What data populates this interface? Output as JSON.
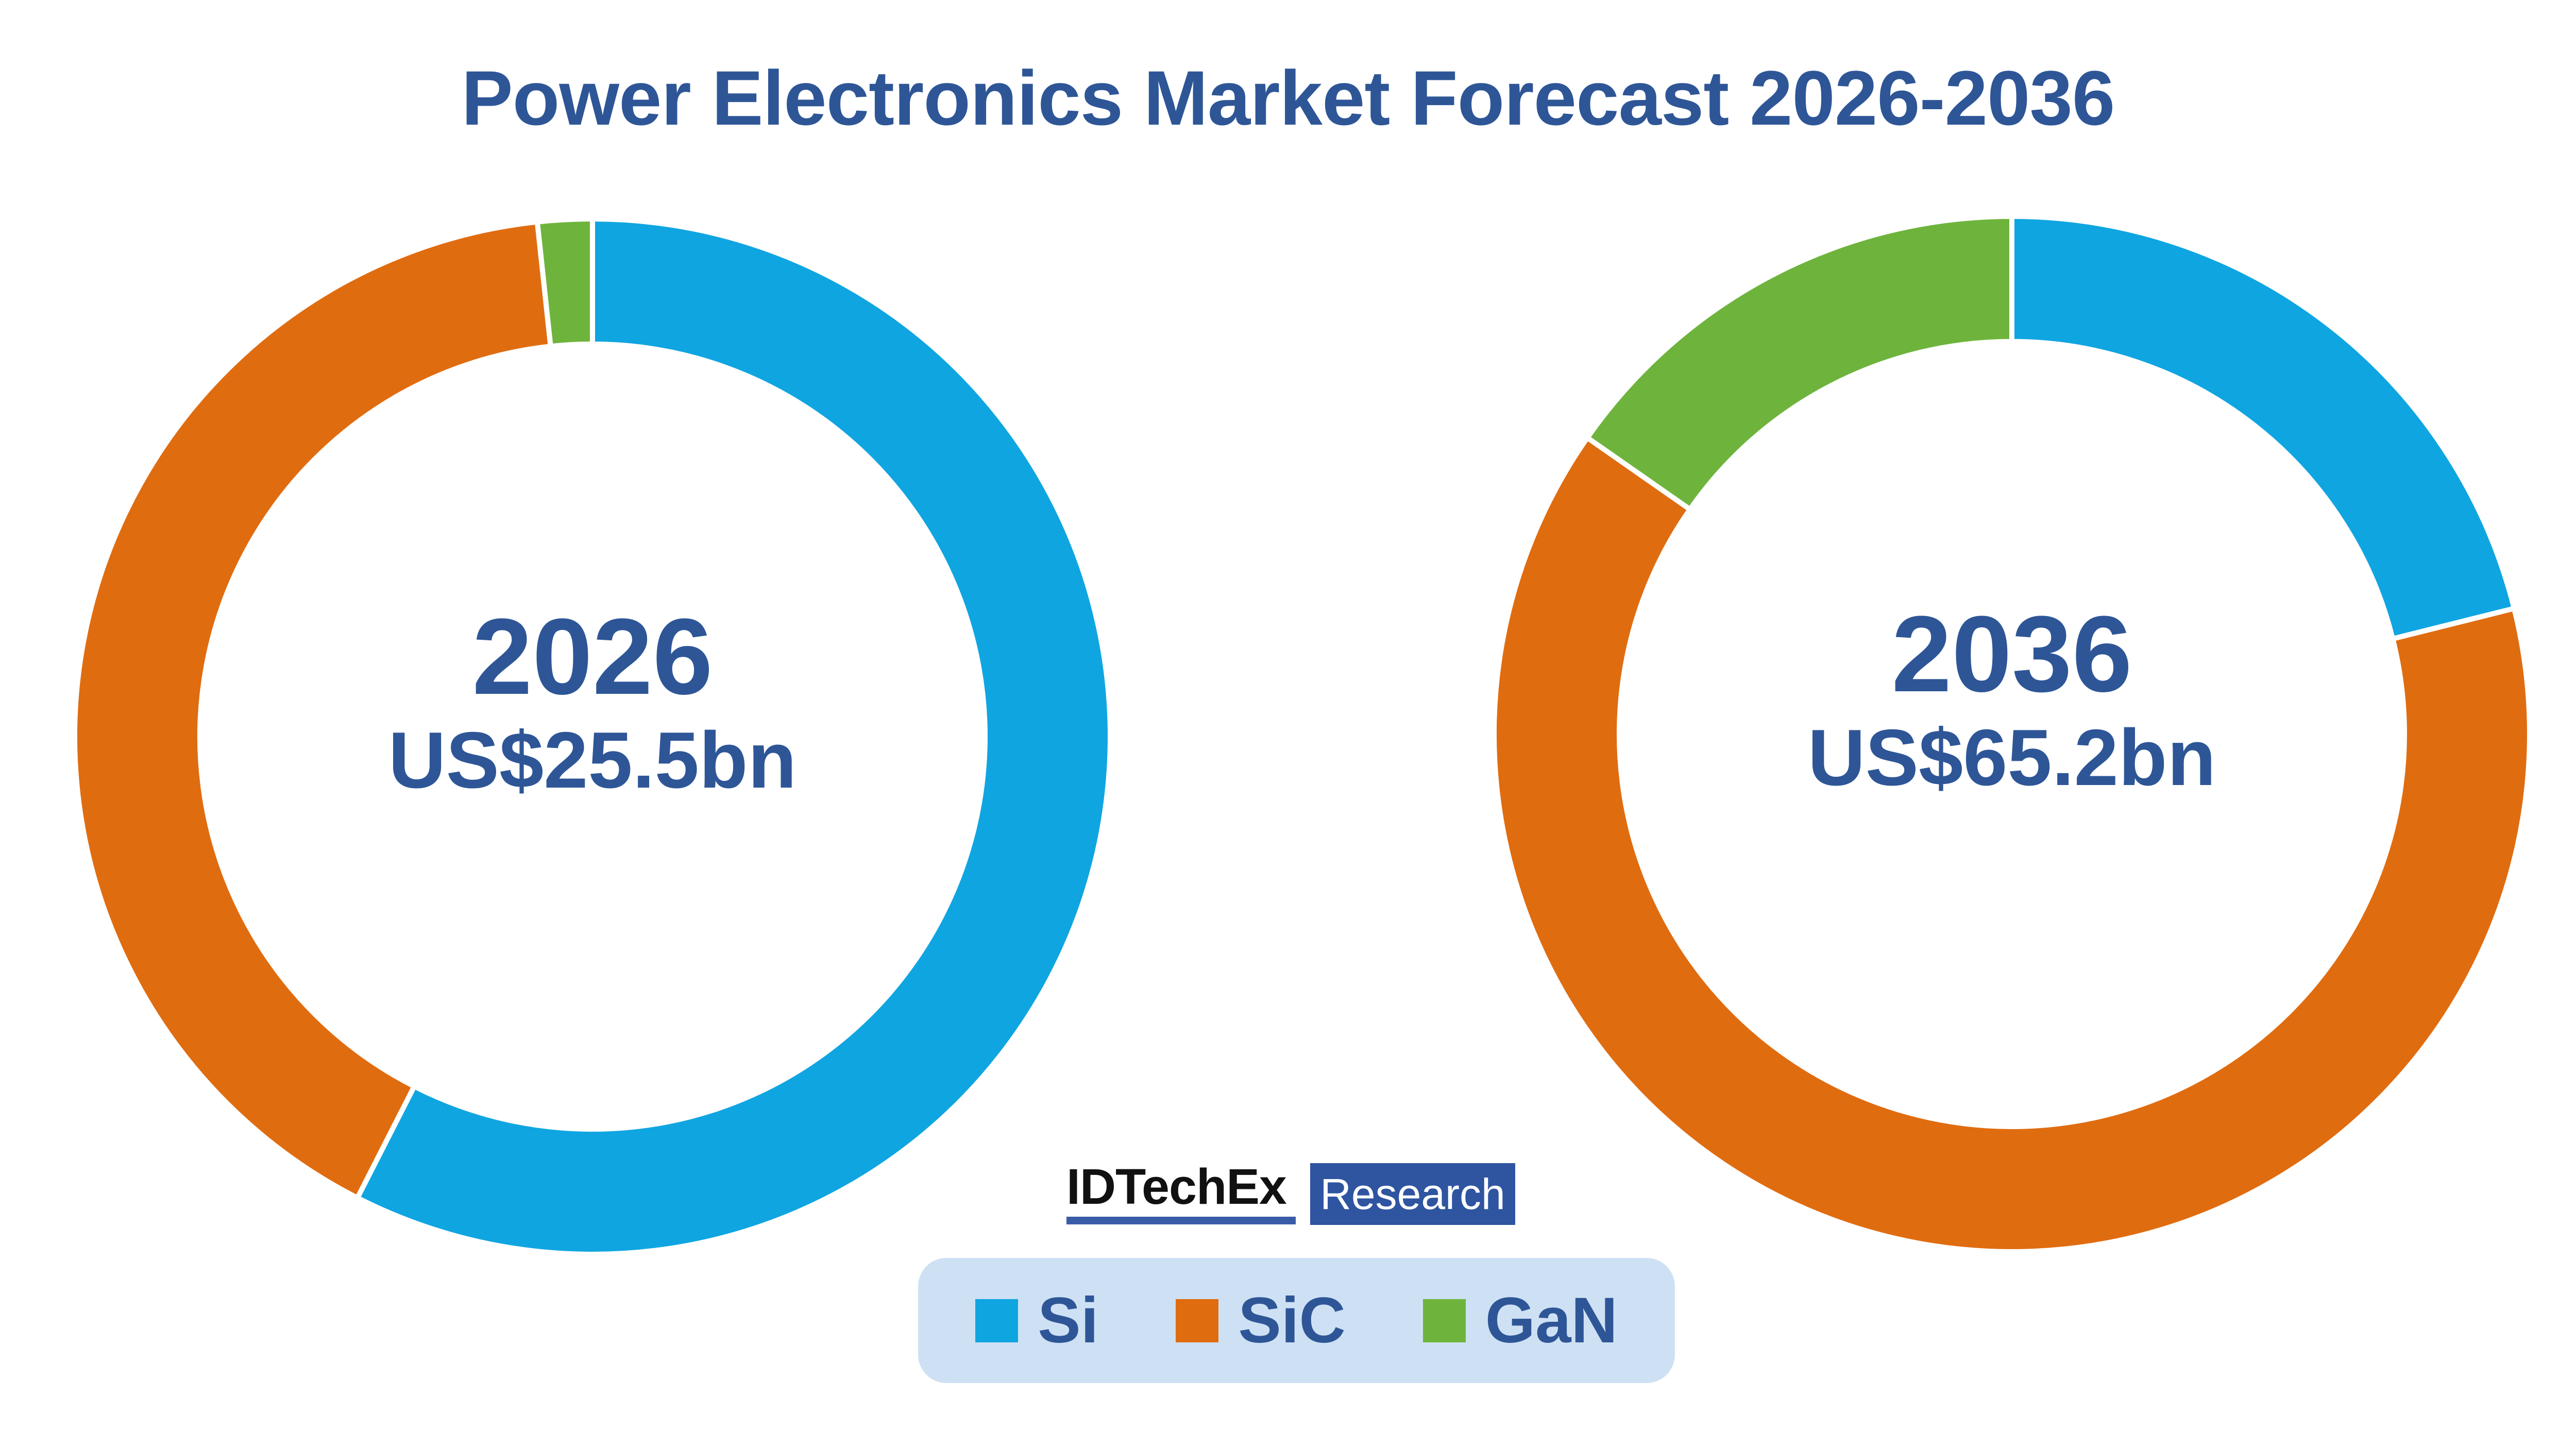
{
  "title": {
    "text": "Power Electronics Market Forecast 2026-2036"
  },
  "colors": {
    "si": "#0FA5E1",
    "sic": "#E06C10",
    "gan": "#6EB43C",
    "heading_text": "#2E5697",
    "logo_brand": "#111111",
    "logo_underline": "#3A5CA8",
    "logo_box": "#2F55A1",
    "legend_bg": "#CEE1F4",
    "separator": "#FFFFFF",
    "background": "#FFFFFF"
  },
  "chart_data": [
    {
      "type": "pie",
      "subtype": "donut",
      "dom_id": "donut-2026",
      "center_year": "2026",
      "center_total": "US$25.5bn",
      "total_usd_bn": 25.5,
      "labels": [
        "Si",
        "SiC",
        "GaN"
      ],
      "series_keys": [
        "si",
        "sic",
        "gan"
      ],
      "values_pct": [
        57.5,
        40.8,
        1.7
      ],
      "start_angle_deg": 0,
      "direction": "clockwise",
      "legend_position": "bottom-center"
    },
    {
      "type": "pie",
      "subtype": "donut",
      "dom_id": "donut-2036",
      "center_year": "2036",
      "center_total": "US$65.2bn",
      "total_usd_bn": 65.2,
      "labels": [
        "Si",
        "SiC",
        "GaN"
      ],
      "series_keys": [
        "si",
        "sic",
        "gan"
      ],
      "values_pct": [
        21.1,
        63.6,
        15.3
      ],
      "start_angle_deg": 0,
      "direction": "clockwise",
      "legend_position": "bottom-center"
    }
  ],
  "legend": {
    "items": [
      {
        "key": "si",
        "label": "Si"
      },
      {
        "key": "sic",
        "label": "SiC"
      },
      {
        "key": "gan",
        "label": "GaN"
      }
    ]
  },
  "logo": {
    "brand": "IDTechEx",
    "division": "Research"
  }
}
